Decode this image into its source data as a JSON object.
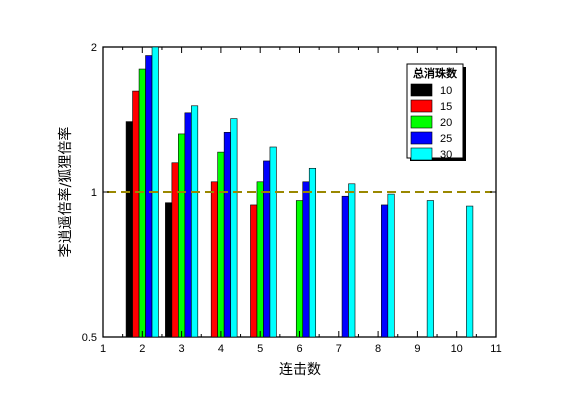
{
  "chart_data": {
    "type": "bar",
    "xlabel": "连击数",
    "ylabel": "李逍遥倍率/狐狸倍率",
    "x_ticks": [
      "1",
      "2",
      "3",
      "4",
      "5",
      "6",
      "7",
      "8",
      "9",
      "10",
      "11"
    ],
    "y_ticks": [
      {
        "value": 0.5,
        "label": "0.5"
      },
      {
        "value": 1,
        "label": "1"
      },
      {
        "value": 2,
        "label": "2"
      }
    ],
    "xlim": [
      1,
      11
    ],
    "ylim": [
      0.5,
      2
    ],
    "y_scale": "log",
    "legend_title": "总消珠数",
    "legend_position": "top-right",
    "reference_line": {
      "value": 1,
      "style": "dashed",
      "color": "#9a8800"
    },
    "series": [
      {
        "name": "10",
        "color": "#000000",
        "values": [
          {
            "x": 2,
            "y": 1.4
          },
          {
            "x": 3,
            "y": 0.95
          }
        ]
      },
      {
        "name": "15",
        "color": "#ff0000",
        "values": [
          {
            "x": 2,
            "y": 1.62
          },
          {
            "x": 3,
            "y": 1.15
          },
          {
            "x": 4,
            "y": 1.05
          },
          {
            "x": 5,
            "y": 0.94
          }
        ]
      },
      {
        "name": "20",
        "color": "#00ff00",
        "values": [
          {
            "x": 2,
            "y": 1.8
          },
          {
            "x": 3,
            "y": 1.32
          },
          {
            "x": 4,
            "y": 1.21
          },
          {
            "x": 5,
            "y": 1.05
          },
          {
            "x": 6,
            "y": 0.96
          }
        ]
      },
      {
        "name": "25",
        "color": "#0000ff",
        "values": [
          {
            "x": 2,
            "y": 1.92
          },
          {
            "x": 3,
            "y": 1.46
          },
          {
            "x": 4,
            "y": 1.33
          },
          {
            "x": 5,
            "y": 1.16
          },
          {
            "x": 6,
            "y": 1.05
          },
          {
            "x": 7,
            "y": 0.98
          },
          {
            "x": 8,
            "y": 0.94
          }
        ]
      },
      {
        "name": "30",
        "color": "#00ffff",
        "values": [
          {
            "x": 2,
            "y": 2.0
          },
          {
            "x": 3,
            "y": 1.51
          },
          {
            "x": 4,
            "y": 1.42
          },
          {
            "x": 5,
            "y": 1.24
          },
          {
            "x": 6,
            "y": 1.12
          },
          {
            "x": 7,
            "y": 1.04
          },
          {
            "x": 8,
            "y": 0.99
          },
          {
            "x": 9,
            "y": 0.96
          },
          {
            "x": 10,
            "y": 0.935
          }
        ]
      }
    ]
  }
}
